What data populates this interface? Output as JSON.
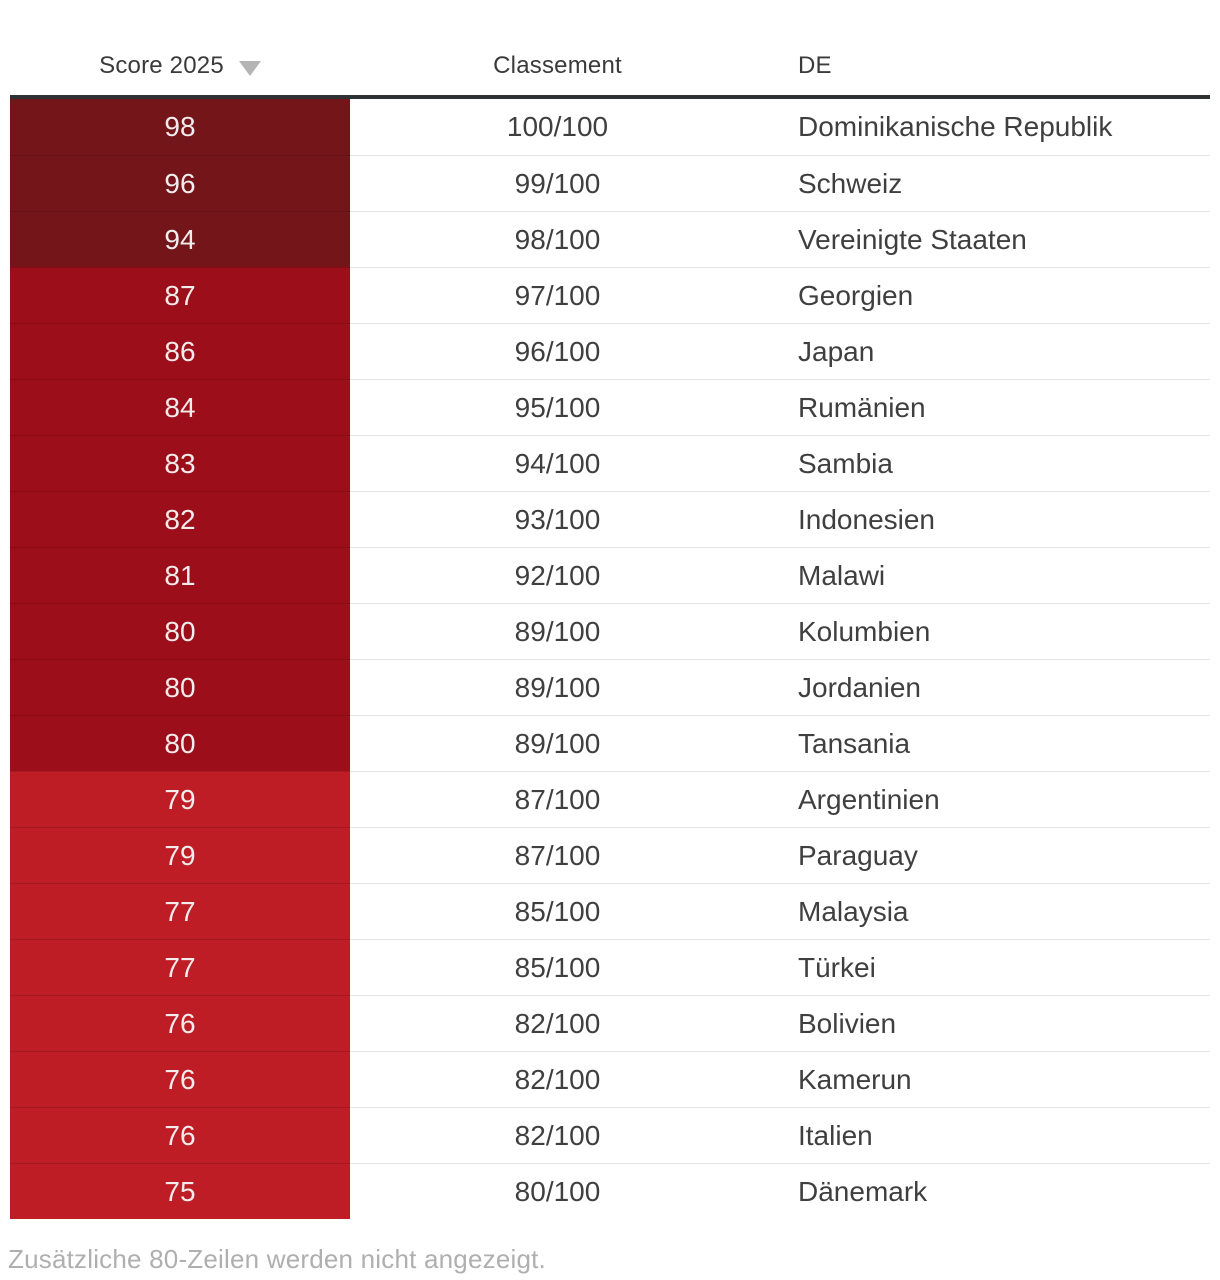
{
  "colors": {
    "band_high": "#731519",
    "band_mid": "#9C0E19",
    "band_low": "#BE1D26",
    "header_bar": "#2F3235",
    "score_text": "#F2ECEC",
    "cell_text": "#3F3F3F",
    "header_text": "#3A3A3A",
    "muted_text": "#AFAFAF",
    "divider": "#E4E4E4",
    "sort_arrow": "#B4B4B4"
  },
  "header": {
    "score_label": "Score 2025",
    "sort_icon": "sort-desc-triangle",
    "classement_label": "Classement",
    "language_label": "DE"
  },
  "rows": [
    {
      "score": "98",
      "classement": "100/100",
      "country": "Dominikanische Republik",
      "band": "high"
    },
    {
      "score": "96",
      "classement": "99/100",
      "country": "Schweiz",
      "band": "high"
    },
    {
      "score": "94",
      "classement": "98/100",
      "country": "Vereinigte Staaten",
      "band": "high"
    },
    {
      "score": "87",
      "classement": "97/100",
      "country": "Georgien",
      "band": "mid"
    },
    {
      "score": "86",
      "classement": "96/100",
      "country": "Japan",
      "band": "mid"
    },
    {
      "score": "84",
      "classement": "95/100",
      "country": "Rumänien",
      "band": "mid"
    },
    {
      "score": "83",
      "classement": "94/100",
      "country": "Sambia",
      "band": "mid"
    },
    {
      "score": "82",
      "classement": "93/100",
      "country": "Indonesien",
      "band": "mid"
    },
    {
      "score": "81",
      "classement": "92/100",
      "country": "Malawi",
      "band": "mid"
    },
    {
      "score": "80",
      "classement": "89/100",
      "country": "Kolumbien",
      "band": "mid"
    },
    {
      "score": "80",
      "classement": "89/100",
      "country": "Jordanien",
      "band": "mid"
    },
    {
      "score": "80",
      "classement": "89/100",
      "country": "Tansania",
      "band": "mid"
    },
    {
      "score": "79",
      "classement": "87/100",
      "country": "Argentinien",
      "band": "low"
    },
    {
      "score": "79",
      "classement": "87/100",
      "country": "Paraguay",
      "band": "low"
    },
    {
      "score": "77",
      "classement": "85/100",
      "country": "Malaysia",
      "band": "low"
    },
    {
      "score": "77",
      "classement": "85/100",
      "country": "Türkei",
      "band": "low"
    },
    {
      "score": "76",
      "classement": "82/100",
      "country": "Bolivien",
      "band": "low"
    },
    {
      "score": "76",
      "classement": "82/100",
      "country": "Kamerun",
      "band": "low"
    },
    {
      "score": "76",
      "classement": "82/100",
      "country": "Italien",
      "band": "low"
    },
    {
      "score": "75",
      "classement": "80/100",
      "country": "Dänemark",
      "band": "low"
    }
  ],
  "footer": {
    "note": "Zusätzliche 80-Zeilen werden nicht angezeigt."
  }
}
